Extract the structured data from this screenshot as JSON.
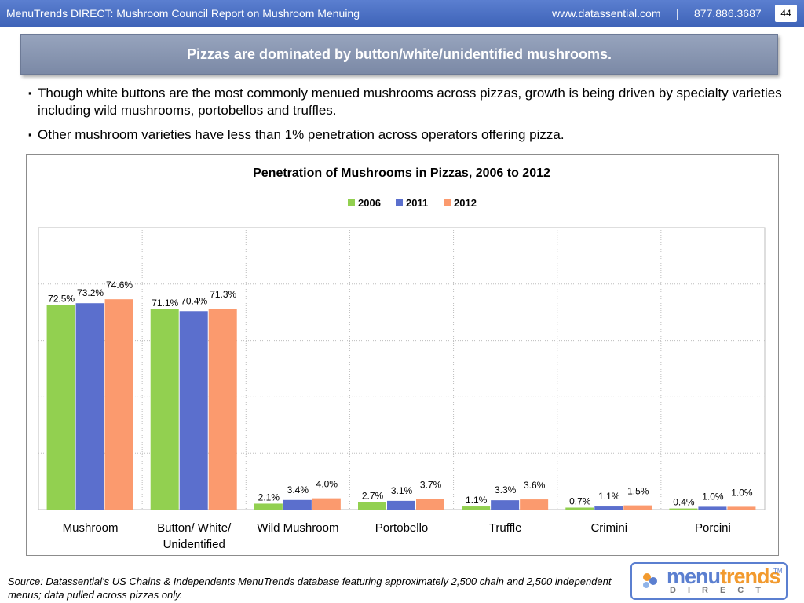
{
  "header": {
    "title": "MenuTrends DIRECT: Mushroom Council Report on Mushroom Menuing",
    "url": "www.datassential.com",
    "separator": "|",
    "phone": "877.886.3687",
    "page_number": "44"
  },
  "banner": {
    "text": "Pizzas are dominated by button/white/unidentified mushrooms."
  },
  "bullets": [
    "Though white buttons are the most commonly menued mushrooms across pizzas, growth is being driven by specialty varieties including wild mushrooms, portobellos and truffles.",
    "Other mushroom varieties have less than 1% penetration across operators offering pizza."
  ],
  "chart_data": {
    "type": "bar",
    "title": "Penetration of Mushrooms in Pizzas, 2006 to 2012",
    "categories": [
      "Mushroom",
      "Button/ White/ Unidentified",
      "Wild Mushroom",
      "Portobello",
      "Truffle",
      "Crimini",
      "Porcini"
    ],
    "series": [
      {
        "name": "2006",
        "color": "#92d050",
        "values": [
          72.5,
          71.1,
          2.1,
          2.7,
          1.1,
          0.7,
          0.4
        ],
        "labels": [
          "72.5%",
          "71.1%",
          "2.1%",
          "2.7%",
          "1.1%",
          "0.7%",
          "0.4%"
        ]
      },
      {
        "name": "2011",
        "color": "#5b6fcd",
        "values": [
          73.2,
          70.4,
          3.4,
          3.1,
          3.3,
          1.1,
          1.0
        ],
        "labels": [
          "73.2%",
          "70.4%",
          "3.4%",
          "3.1%",
          "3.3%",
          "1.1%",
          "1.0%"
        ]
      },
      {
        "name": "2012",
        "color": "#fb9a6e",
        "values": [
          74.6,
          71.3,
          4.0,
          3.7,
          3.6,
          1.5,
          1.0
        ],
        "labels": [
          "74.6%",
          "71.3%",
          "4.0%",
          "3.7%",
          "3.6%",
          "1.5%",
          "1.0%"
        ]
      }
    ],
    "ylim": [
      0,
      100
    ],
    "grid": true,
    "legend_position": "top-center",
    "xlabel": "",
    "ylabel": ""
  },
  "source": "Source: Datassential’s US Chains & Independents MenuTrends database featuring approximately 2,500 chain and 2,500 independent menus; data pulled across pizzas only.",
  "logo": {
    "menu": "menu",
    "trends": "trends",
    "tm": "TM",
    "direct": "DIRECT"
  }
}
